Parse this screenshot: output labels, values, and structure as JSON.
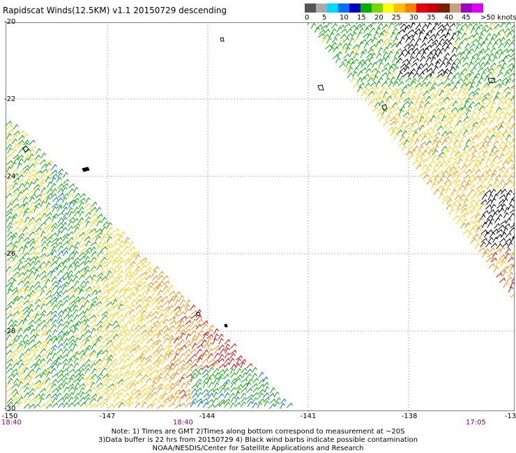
{
  "title": "Rapidscat Winds(12.5KM) v1.1 20150729 descending",
  "legend": {
    "unit_label": ">50 knots",
    "labels": [
      "0",
      "5",
      "10",
      "15",
      "20",
      "25",
      "30",
      "35",
      "40",
      "45"
    ],
    "colors": [
      "#555555",
      "#aaaaaa",
      "#00d8ff",
      "#0070ff",
      "#0000c0",
      "#00b000",
      "#7ad400",
      "#ffff00",
      "#ffbf00",
      "#ff7f00",
      "#e8000a",
      "#c80000",
      "#7a2000",
      "#c8a080",
      "#a000c0",
      "#e000ff"
    ]
  },
  "map": {
    "lat_labels": [
      "-20",
      "-22",
      "-24",
      "-26",
      "-28",
      "-30"
    ],
    "lon_labels": [
      "-150",
      "-147",
      "-144",
      "-141",
      "-138",
      "-13"
    ],
    "times": [
      "18:40",
      "18:40",
      "17:05"
    ],
    "colors": {
      "grid": "#808080",
      "calm": "#0060ff",
      "light": "#00aa00",
      "moderate": "#ffd000",
      "fresh": "#ff8800",
      "strong": "#e00000",
      "contamination": "#000000"
    }
  },
  "footer": {
    "line1": "Note: 1) Times are GMT 2)Times along bottom correspond to measurement at ~20S",
    "line2": "3)Data buffer is 22 hrs from 20150729 4) Black wind barbs indicate possible contamination",
    "line3": "NOAA/NESDIS/Center for Satellite Applications and Research"
  }
}
